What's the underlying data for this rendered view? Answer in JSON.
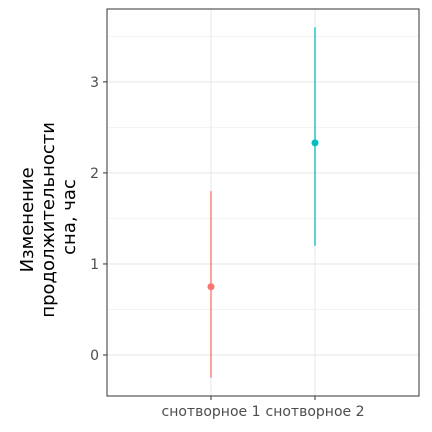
{
  "chart_data": {
    "type": "errorbar",
    "categories": [
      "снотворное 1",
      "снотворное 2"
    ],
    "points": [
      {
        "category": "снотворное 1",
        "y": 0.75,
        "ymin": -0.25,
        "ymax": 1.8,
        "color": "#F8766D"
      },
      {
        "category": "снотворное 2",
        "y": 2.33,
        "ymin": 1.2,
        "ymax": 3.6,
        "color": "#00BFC4"
      }
    ],
    "ylabel_lines": [
      "Изменение",
      "продолжительности",
      "сна, час"
    ],
    "xlabel": "",
    "ylim": [
      -0.45,
      3.8
    ],
    "yticks": [
      "0",
      "1",
      "2",
      "3"
    ],
    "grid": true,
    "legend": "none"
  }
}
